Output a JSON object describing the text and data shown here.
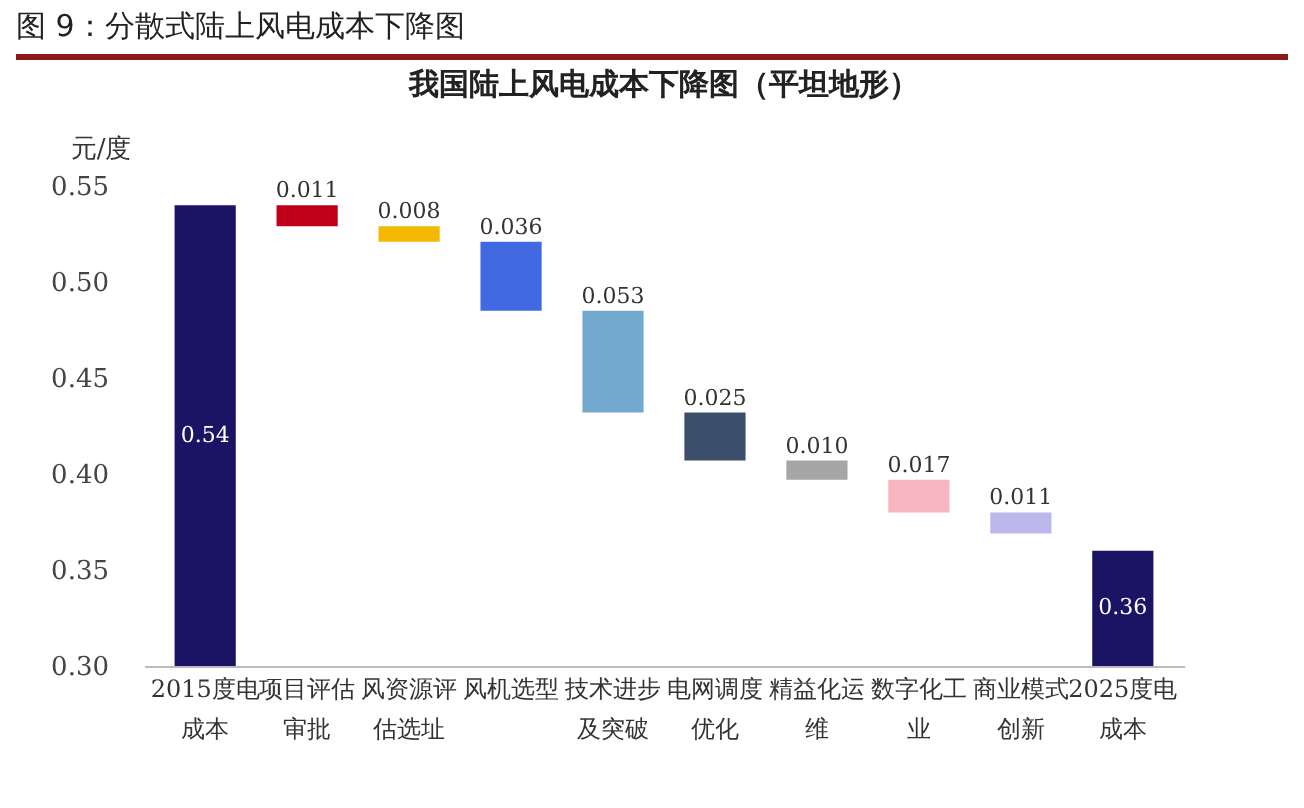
{
  "chart_data": {
    "type": "bar",
    "title": "我国陆上风电成本下降图（平坦地形）",
    "subtitle": "图 9：分散式陆上风电成本下降图",
    "ylabel": "元/度",
    "categories": [
      "2015度电成本",
      "项目评估审批",
      "风资源评估选址",
      "风机选型",
      "技术进步及突破",
      "电网调度优化",
      "精益化运维",
      "数字化工业",
      "商业模式创新",
      "2025度电成本"
    ],
    "values": [
      0.54,
      -0.011,
      -0.008,
      -0.036,
      -0.053,
      -0.025,
      -0.01,
      -0.017,
      -0.011,
      0.36
    ],
    "base": [
      null,
      0.54,
      0.529,
      0.521,
      0.485,
      0.432,
      0.407,
      0.397,
      0.38,
      null
    ],
    "value_labels": [
      "0.54",
      "0.011",
      "0.008",
      "0.036",
      "0.053",
      "0.025",
      "0.010",
      "0.017",
      "0.011",
      "0.36"
    ],
    "colors": [
      "#1b1464",
      "#c00018",
      "#f5b800",
      "#4169e1",
      "#74a9cf",
      "#3b4f6b",
      "#a6a6a6",
      "#f7b6c0",
      "#bcb8ec",
      "#1b1464"
    ],
    "ylim": [
      0.3,
      0.55
    ],
    "yticks": [
      {
        "value": 0.3,
        "label": "0.30"
      },
      {
        "value": 0.35,
        "label": "0.35"
      },
      {
        "value": 0.4,
        "label": "0.40"
      },
      {
        "value": 0.45,
        "label": "0.45"
      },
      {
        "value": 0.5,
        "label": "0.50"
      },
      {
        "value": 0.55,
        "label": "0.55"
      }
    ],
    "grid": false,
    "legend": false
  }
}
